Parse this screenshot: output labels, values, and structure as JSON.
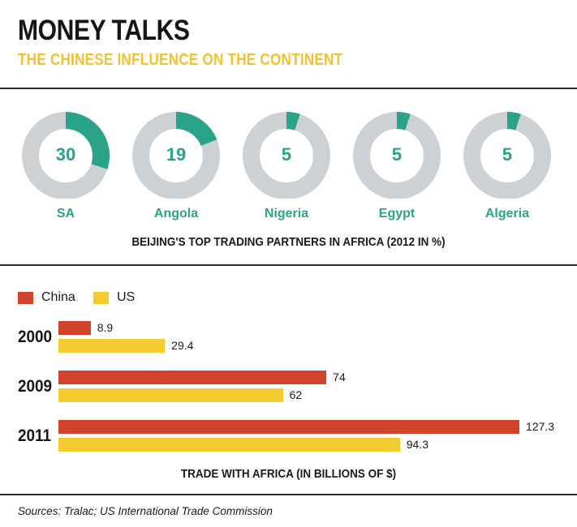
{
  "header": {
    "title": "MONEY TALKS",
    "subtitle": "THE CHINESE INFLUENCE ON THE CONTINENT"
  },
  "colors": {
    "teal": "#2aa388",
    "grey": "#ccd1d6",
    "china": "#d0432c",
    "us": "#f4cc30"
  },
  "chart_data": [
    {
      "type": "pie",
      "variant": "donut",
      "title": "BEIJING'S TOP TRADING PARTNERS IN AFRICA (2012 IN %)",
      "categories": [
        "SA",
        "Angola",
        "Nigeria",
        "Egypt",
        "Algeria"
      ],
      "values": [
        30,
        19,
        5,
        5,
        5
      ],
      "value_labels": [
        "30",
        "19",
        "5",
        "5",
        "5"
      ],
      "unit": "%"
    },
    {
      "type": "bar",
      "orientation": "horizontal",
      "title": "TRADE WITH AFRICA (IN BILLIONS OF $)",
      "categories": [
        "2000",
        "2009",
        "2011"
      ],
      "series": [
        {
          "name": "China",
          "values": [
            8.9,
            74,
            127.3
          ],
          "labels": [
            "8.9",
            "74",
            "127.3"
          ]
        },
        {
          "name": "US",
          "values": [
            29.4,
            62,
            94.3
          ],
          "labels": [
            "29.4",
            "62",
            "94.3"
          ]
        }
      ],
      "xlim": [
        0,
        127.3
      ],
      "legend": "top-left",
      "grid": false
    }
  ],
  "footer": {
    "sources": "Sources: Tralac; US International Trade Commission"
  }
}
